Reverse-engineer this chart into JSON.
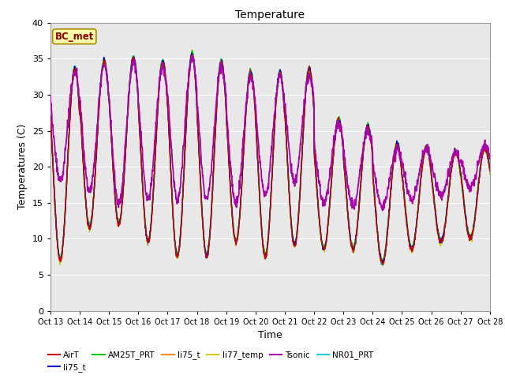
{
  "title": "Temperature",
  "xlabel": "Time",
  "ylabel": "Temperatures (C)",
  "ylim": [
    0,
    40
  ],
  "yticks": [
    0,
    5,
    10,
    15,
    20,
    25,
    30,
    35,
    40
  ],
  "bg_color": "#e8e8e8",
  "series_colors": {
    "AirT": "#cc0000",
    "li75_t_b": "#0000cc",
    "AM25T_PRT": "#00cc00",
    "li75_t": "#ff8800",
    "li77_temp": "#cccc00",
    "Tsonic": "#aa00aa",
    "NR01_PRT": "#00cccc"
  },
  "legend_items": [
    {
      "label": "AirT",
      "color": "#cc0000"
    },
    {
      "label": "li75_t",
      "color": "#0000cc"
    },
    {
      "label": "AM25T_PRT",
      "color": "#00cc00"
    },
    {
      "label": "li75_t",
      "color": "#ff8800"
    },
    {
      "label": "li77_temp",
      "color": "#cccc00"
    },
    {
      "label": "Tsonic",
      "color": "#aa00aa"
    },
    {
      "label": "NR01_PRT",
      "color": "#00cccc"
    }
  ],
  "annotation": "BC_met",
  "xtick_labels": [
    "Oct 13",
    "Oct 14",
    "Oct 15",
    "Oct 16",
    "Oct 17",
    "Oct 18",
    "Oct 19",
    "Oct 20",
    "Oct 21",
    "Oct 22",
    "Oct 23",
    "Oct 24",
    "Oct 25",
    "Oct 26",
    "Oct 27",
    "Oct 28"
  ]
}
